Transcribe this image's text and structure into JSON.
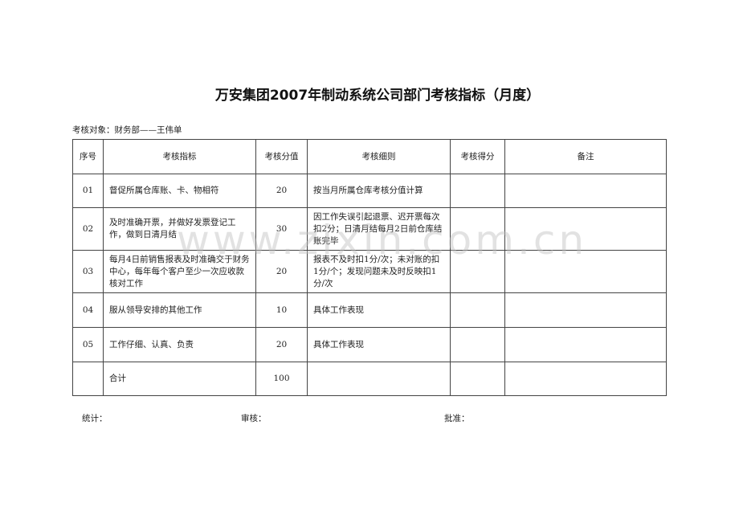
{
  "title": "万安集团2007年制动系统公司部门考核指标（月度）",
  "subject": "考核对象：财务部——王伟单",
  "headers": [
    "序号",
    "考核指标",
    "考核分值",
    "考核细则",
    "考核得分",
    "备注"
  ],
  "rows": [
    {
      "no": "01",
      "indicator": "督促所属仓库账、卡、物相符",
      "score": "20",
      "rule": "按当月所属仓库考核分值计算",
      "got": "",
      "note": ""
    },
    {
      "no": "02",
      "indicator": "及时准确开票，并做好发票登记工作，做到日清月结",
      "score": "30",
      "rule": "因工作失误引起退票、迟开票每次扣2分；日清月结每月2日前仓库结账完毕",
      "got": "",
      "note": ""
    },
    {
      "no": "03",
      "indicator": "每月4日前销售报表及时准确交于财务中心，每年每个客户至少一次应收款核对工作",
      "score": "20",
      "rule": "报表不及时扣1分/次；未对账的扣1分/个；发现问题未及时反映扣1分/次",
      "got": "",
      "note": ""
    },
    {
      "no": "04",
      "indicator": "服从领导安排的其他工作",
      "score": "10",
      "rule": "具体工作表现",
      "got": "",
      "note": ""
    },
    {
      "no": "05",
      "indicator": "工作仔细、认真、负责",
      "score": "20",
      "rule": "具体工作表现",
      "got": "",
      "note": ""
    },
    {
      "no": "",
      "indicator": "合计",
      "score": "100",
      "rule": "",
      "got": "",
      "note": ""
    }
  ],
  "watermark": "www.zixin.com.cn",
  "footer": {
    "stat": "统计：",
    "review": "审核：",
    "approve": "批准："
  }
}
